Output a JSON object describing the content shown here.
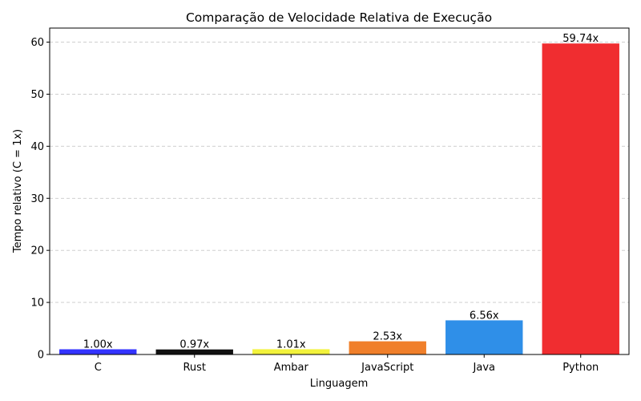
{
  "chart_data": {
    "type": "bar",
    "title": "Comparação de Velocidade Relativa de Execução",
    "xlabel": "Linguagem",
    "ylabel": "Tempo relativo (C = 1x)",
    "categories": [
      "C",
      "Rust",
      "Ambar",
      "JavaScript",
      "Java",
      "Python"
    ],
    "values": [
      1.0,
      0.97,
      1.01,
      2.53,
      6.56,
      59.74
    ],
    "data_labels": [
      "1.00x",
      "0.97x",
      "1.01x",
      "2.53x",
      "6.56x",
      "59.74x"
    ],
    "colors": [
      "#3333ff",
      "#111111",
      "#f2f23c",
      "#f07f2a",
      "#2f8fe8",
      "#f02d30"
    ],
    "ylim": [
      0,
      62.7
    ],
    "yticks": [
      0,
      10,
      20,
      30,
      40,
      50,
      60
    ],
    "grid": "y-dashed",
    "legend": "none"
  }
}
